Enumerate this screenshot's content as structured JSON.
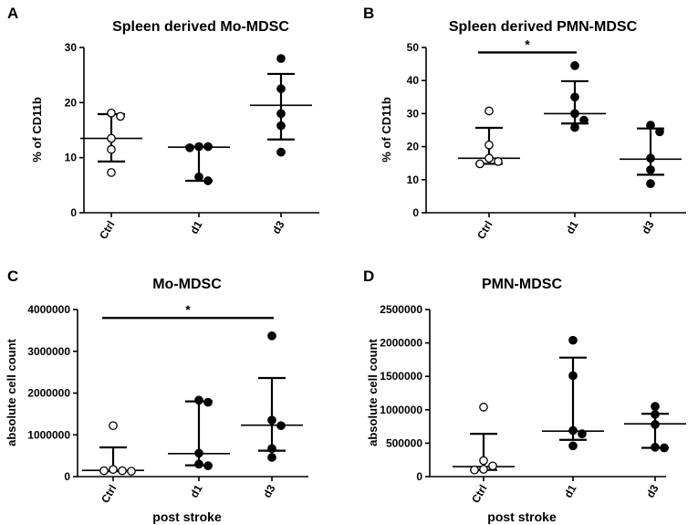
{
  "figure": {
    "x_axis_label": "post stroke"
  },
  "chart_data": [
    {
      "panel": "A",
      "type": "scatter",
      "title": "Spleen derived Mo-MDSC",
      "ylabel": "% of CD11b",
      "xlabel": "",
      "categories": [
        "Ctrl",
        "d1",
        "d3"
      ],
      "ylim": [
        0,
        30
      ],
      "yticks": [
        0,
        10,
        20,
        30
      ],
      "ytick_labels": [
        "0",
        "10",
        "20",
        "30"
      ],
      "series": [
        {
          "name": "Ctrl",
          "filled": false,
          "points": [
            18.1,
            17.5,
            13.5,
            11.5,
            7.3
          ],
          "median": 13.5,
          "iqr": [
            9.3,
            17.9
          ]
        },
        {
          "name": "d1",
          "filled": true,
          "points": [
            12.0,
            12.0,
            11.8,
            6.5,
            5.8
          ],
          "median": 11.9,
          "iqr": [
            5.8,
            12.0
          ]
        },
        {
          "name": "d3",
          "filled": true,
          "points": [
            28.0,
            22.5,
            18.0,
            15.8,
            11.0
          ],
          "median": 19.5,
          "iqr": [
            13.3,
            25.2
          ]
        }
      ],
      "significance": []
    },
    {
      "panel": "B",
      "type": "scatter",
      "title": "Spleen derived PMN-MDSC",
      "ylabel": "% of CD11b",
      "xlabel": "",
      "categories": [
        "Ctrl",
        "d1",
        "d3"
      ],
      "ylim": [
        0,
        50
      ],
      "yticks": [
        0,
        10,
        20,
        30,
        40,
        50
      ],
      "ytick_labels": [
        "0",
        "10",
        "20",
        "30",
        "40",
        "50"
      ],
      "series": [
        {
          "name": "Ctrl",
          "filled": false,
          "points": [
            30.8,
            20.5,
            16.5,
            15.5,
            14.8
          ],
          "median": 16.5,
          "iqr": [
            14.8,
            25.7
          ]
        },
        {
          "name": "d1",
          "filled": true,
          "points": [
            44.5,
            35.0,
            30.0,
            28.0,
            25.8
          ],
          "median": 30.0,
          "iqr": [
            27.0,
            39.8
          ]
        },
        {
          "name": "d3",
          "filled": true,
          "points": [
            26.5,
            24.5,
            16.5,
            13.0,
            8.8
          ],
          "median": 16.2,
          "iqr": [
            11.5,
            25.5
          ]
        }
      ],
      "significance": [
        {
          "from": "Ctrl",
          "to": "d1",
          "y": 48.5,
          "label": "*"
        }
      ]
    },
    {
      "panel": "C",
      "type": "scatter",
      "title": "Mo-MDSC",
      "ylabel": "absolute cell count",
      "xlabel": "post stroke",
      "categories": [
        "Ctrl",
        "d1",
        "d3"
      ],
      "ylim": [
        0,
        4000000
      ],
      "yticks": [
        0,
        1000000,
        2000000,
        3000000,
        4000000
      ],
      "ytick_labels": [
        "0",
        "1000000",
        "2000000",
        "3000000",
        "4000000"
      ],
      "series": [
        {
          "name": "Ctrl",
          "filled": false,
          "points": [
            1220000,
            170000,
            140000,
            140000,
            130000
          ],
          "median": 150000,
          "iqr": [
            130000,
            700000
          ]
        },
        {
          "name": "d1",
          "filled": true,
          "points": [
            1830000,
            1780000,
            560000,
            300000,
            260000
          ],
          "median": 550000,
          "iqr": [
            270000,
            1800000
          ]
        },
        {
          "name": "d3",
          "filled": true,
          "points": [
            3370000,
            1350000,
            1220000,
            670000,
            460000
          ],
          "median": 1230000,
          "iqr": [
            620000,
            2360000
          ]
        }
      ],
      "significance": [
        {
          "from": "Ctrl",
          "to": "d3",
          "y": 3800000,
          "label": "*"
        }
      ]
    },
    {
      "panel": "D",
      "type": "scatter",
      "title": "PMN-MDSC",
      "ylabel": "absolute cell count",
      "xlabel": "post stroke",
      "categories": [
        "Ctrl",
        "d1",
        "d3"
      ],
      "ylim": [
        0,
        2500000
      ],
      "yticks": [
        0,
        500000,
        1000000,
        1500000,
        2000000,
        2500000
      ],
      "ytick_labels": [
        "0",
        "500000",
        "1000000",
        "1500000",
        "2000000",
        "2500000"
      ],
      "series": [
        {
          "name": "Ctrl",
          "filled": false,
          "points": [
            1040000,
            240000,
            160000,
            110000,
            100000
          ],
          "median": 150000,
          "iqr": [
            100000,
            640000
          ]
        },
        {
          "name": "d1",
          "filled": true,
          "points": [
            2040000,
            1510000,
            690000,
            640000,
            460000
          ],
          "median": 680000,
          "iqr": [
            550000,
            1780000
          ]
        },
        {
          "name": "d3",
          "filled": true,
          "points": [
            1050000,
            930000,
            780000,
            440000,
            430000
          ],
          "median": 790000,
          "iqr": [
            430000,
            940000
          ]
        }
      ],
      "significance": []
    }
  ]
}
